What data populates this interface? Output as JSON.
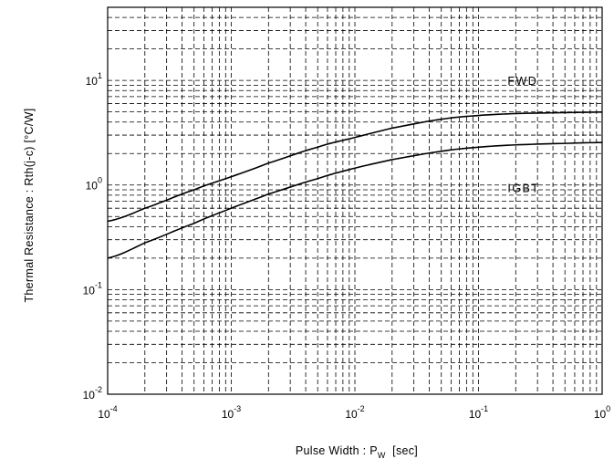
{
  "chart_data": {
    "type": "line",
    "xlabel_main": "Pulse Width  :  P",
    "xlabel_sub": "W",
    "xlabel_unit": "  [sec]",
    "ylabel": "Thermal Resistance  :  Rth(j-c)  [°C/W]",
    "x_scale": "log",
    "y_scale": "log",
    "xlim": [
      0.0001,
      1
    ],
    "ylim": [
      0.01,
      50
    ],
    "grid": true,
    "x_ticks": [
      {
        "base": "10",
        "exp": "-4",
        "value": 0.0001
      },
      {
        "base": "10",
        "exp": "-3",
        "value": 0.001
      },
      {
        "base": "10",
        "exp": "-2",
        "value": 0.01
      },
      {
        "base": "10",
        "exp": "-1",
        "value": 0.1
      },
      {
        "base": "10",
        "exp": "0",
        "value": 1
      }
    ],
    "y_ticks": [
      {
        "base": "10",
        "exp": "-2",
        "value": 0.01
      },
      {
        "base": "10",
        "exp": "-1",
        "value": 0.1
      },
      {
        "base": "10",
        "exp": "0",
        "value": 1
      },
      {
        "base": "10",
        "exp": "1",
        "value": 10
      }
    ],
    "series": [
      {
        "name": "FWD",
        "label_at": [
          0.15,
          10
        ],
        "x": [
          0.0001,
          0.0002,
          0.0005,
          0.001,
          0.002,
          0.005,
          0.01,
          0.02,
          0.05,
          0.1,
          0.2,
          0.5,
          1
        ],
        "y": [
          0.45,
          0.6,
          0.9,
          1.2,
          1.62,
          2.3,
          2.85,
          3.5,
          4.25,
          4.62,
          4.82,
          4.92,
          4.98
        ]
      },
      {
        "name": "IGBT",
        "label_at": [
          0.15,
          0.95
        ],
        "x": [
          0.0001,
          0.0002,
          0.0005,
          0.001,
          0.002,
          0.005,
          0.01,
          0.02,
          0.05,
          0.1,
          0.2,
          0.5,
          1
        ],
        "y": [
          0.2,
          0.28,
          0.43,
          0.6,
          0.82,
          1.15,
          1.45,
          1.75,
          2.1,
          2.3,
          2.42,
          2.5,
          2.55
        ]
      }
    ]
  }
}
